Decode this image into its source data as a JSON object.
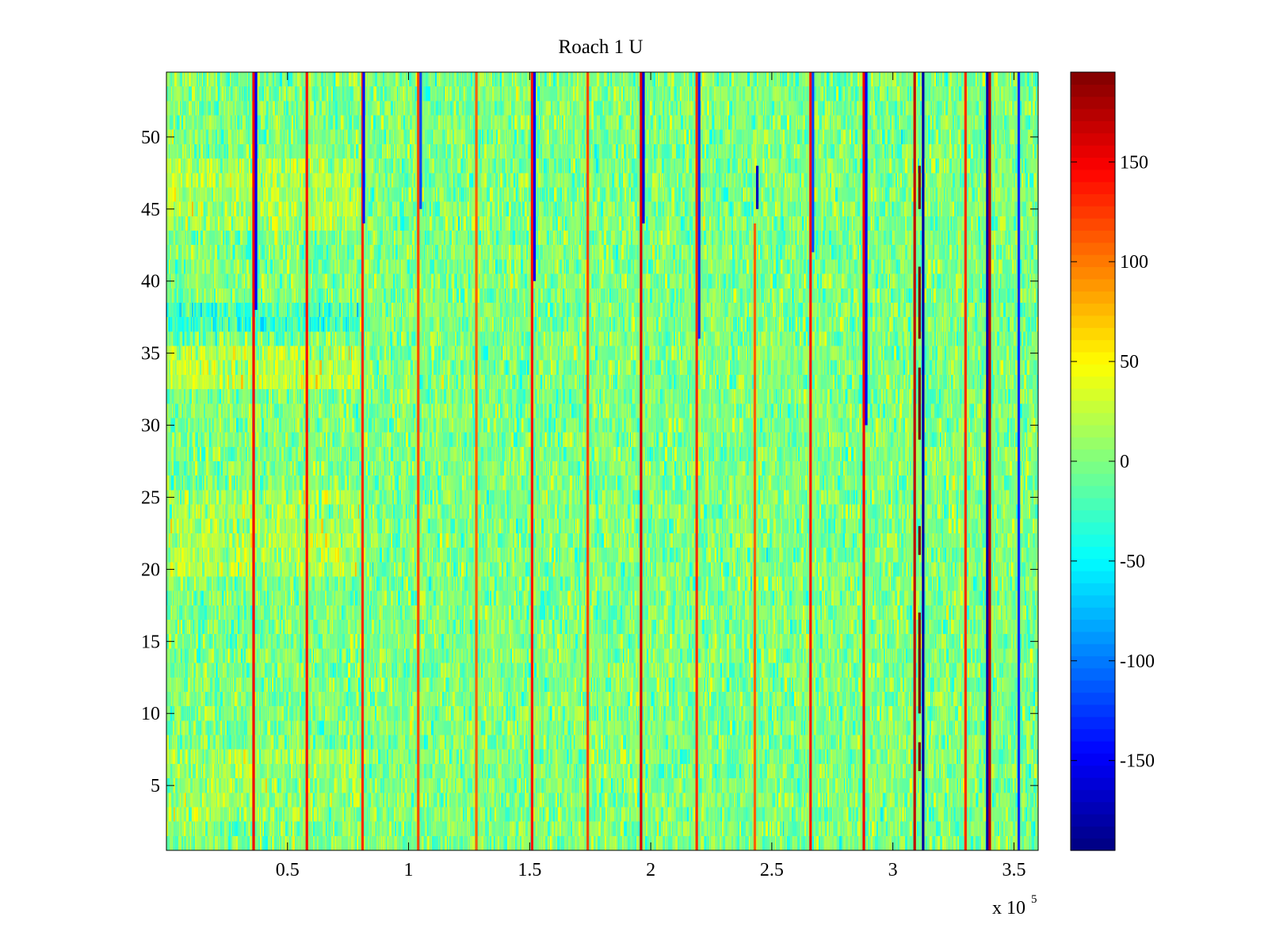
{
  "chart_data": {
    "type": "heatmap",
    "title": "Roach 1 U",
    "xlabel": "",
    "ylabel": "",
    "colormap": "jet",
    "x_range": [
      0,
      360000
    ],
    "y_range": [
      0.5,
      54.5
    ],
    "x_exponent_label": {
      "base": "x 10",
      "exponent": "5"
    },
    "x_ticks": [
      {
        "value": 50000,
        "label": "0.5"
      },
      {
        "value": 100000,
        "label": "1"
      },
      {
        "value": 150000,
        "label": "1.5"
      },
      {
        "value": 200000,
        "label": "2"
      },
      {
        "value": 250000,
        "label": "2.5"
      },
      {
        "value": 300000,
        "label": "3"
      },
      {
        "value": 350000,
        "label": "3.5"
      }
    ],
    "y_ticks": [
      {
        "value": 5,
        "label": "5"
      },
      {
        "value": 10,
        "label": "10"
      },
      {
        "value": 15,
        "label": "15"
      },
      {
        "value": 20,
        "label": "20"
      },
      {
        "value": 25,
        "label": "25"
      },
      {
        "value": 30,
        "label": "30"
      },
      {
        "value": 35,
        "label": "35"
      },
      {
        "value": 40,
        "label": "40"
      },
      {
        "value": 45,
        "label": "45"
      },
      {
        "value": 50,
        "label": "50"
      }
    ],
    "colorbar": {
      "range": [
        -195,
        195
      ],
      "ticks": [
        {
          "value": 150,
          "label": "150"
        },
        {
          "value": 100,
          "label": "100"
        },
        {
          "value": 50,
          "label": "50"
        },
        {
          "value": 0,
          "label": "0"
        },
        {
          "value": -50,
          "label": "-50"
        },
        {
          "value": -100,
          "label": "-100"
        },
        {
          "value": -150,
          "label": "-150"
        }
      ]
    },
    "rows": 54,
    "background_level": 0,
    "background_spread": 28,
    "column_bias_segments": [
      {
        "x": [
          0,
          80000
        ],
        "y": [
          20,
          25
        ],
        "value": 18
      },
      {
        "x": [
          0,
          80000
        ],
        "y": [
          44,
          48
        ],
        "value": 20
      },
      {
        "x": [
          0,
          80000
        ],
        "y": [
          33,
          36
        ],
        "value": 25
      },
      {
        "x": [
          0,
          80000
        ],
        "y": [
          36,
          38
        ],
        "value": -30
      },
      {
        "x": [
          0,
          80000
        ],
        "y": [
          3,
          7
        ],
        "value": 12
      }
    ],
    "stripes": [
      {
        "x": 36000,
        "value": 150,
        "y": [
          0.5,
          54.5
        ]
      },
      {
        "x": 37000,
        "value": -150,
        "y": [
          38,
          54.5
        ]
      },
      {
        "x": 58000,
        "value": 140,
        "y": [
          0.5,
          54.5
        ]
      },
      {
        "x": 81000,
        "value": 130,
        "y": [
          0.5,
          54.5
        ]
      },
      {
        "x": 81500,
        "value": -140,
        "y": [
          44,
          54.5
        ]
      },
      {
        "x": 104000,
        "value": 120,
        "y": [
          0.5,
          54.5
        ]
      },
      {
        "x": 105000,
        "value": -120,
        "y": [
          45,
          54.5
        ]
      },
      {
        "x": 128000,
        "value": 110,
        "y": [
          0.5,
          54.5
        ]
      },
      {
        "x": 151000,
        "value": 140,
        "y": [
          0.5,
          54.5
        ]
      },
      {
        "x": 152000,
        "value": -150,
        "y": [
          40,
          54.5
        ]
      },
      {
        "x": 174000,
        "value": 120,
        "y": [
          0.5,
          54.5
        ]
      },
      {
        "x": 196000,
        "value": 160,
        "y": [
          0.5,
          54.5
        ]
      },
      {
        "x": 197000,
        "value": -160,
        "y": [
          44,
          54.5
        ]
      },
      {
        "x": 219000,
        "value": 130,
        "y": [
          0.5,
          54.5
        ]
      },
      {
        "x": 220000,
        "value": -130,
        "y": [
          36,
          54.5
        ]
      },
      {
        "x": 244000,
        "value": -170,
        "y": [
          45,
          48
        ]
      },
      {
        "x": 243000,
        "value": 110,
        "y": [
          0.5,
          44
        ]
      },
      {
        "x": 266000,
        "value": 140,
        "y": [
          0.5,
          54.5
        ]
      },
      {
        "x": 267000,
        "value": -120,
        "y": [
          42,
          54.5
        ]
      },
      {
        "x": 288000,
        "value": 150,
        "y": [
          0.5,
          54.5
        ]
      },
      {
        "x": 289000,
        "value": -150,
        "y": [
          30,
          54.5
        ]
      },
      {
        "x": 309000,
        "value": 170,
        "y": [
          0.5,
          54.5
        ]
      },
      {
        "x": 311000,
        "value": 195,
        "y": [
          45,
          48
        ]
      },
      {
        "x": 311000,
        "value": 195,
        "y": [
          36,
          41
        ]
      },
      {
        "x": 311000,
        "value": 195,
        "y": [
          29,
          34
        ]
      },
      {
        "x": 311000,
        "value": 195,
        "y": [
          21,
          23
        ]
      },
      {
        "x": 311000,
        "value": 195,
        "y": [
          10,
          17
        ]
      },
      {
        "x": 311000,
        "value": 195,
        "y": [
          6,
          8
        ]
      },
      {
        "x": 312500,
        "value": -180,
        "y": [
          0.5,
          54.5
        ]
      },
      {
        "x": 330000,
        "value": 130,
        "y": [
          0.5,
          54.5
        ]
      },
      {
        "x": 339000,
        "value": -180,
        "y": [
          0.5,
          54.5
        ]
      },
      {
        "x": 340000,
        "value": 170,
        "y": [
          0.5,
          54.5
        ]
      },
      {
        "x": 352000,
        "value": -130,
        "y": [
          0.5,
          54.5
        ]
      }
    ]
  }
}
